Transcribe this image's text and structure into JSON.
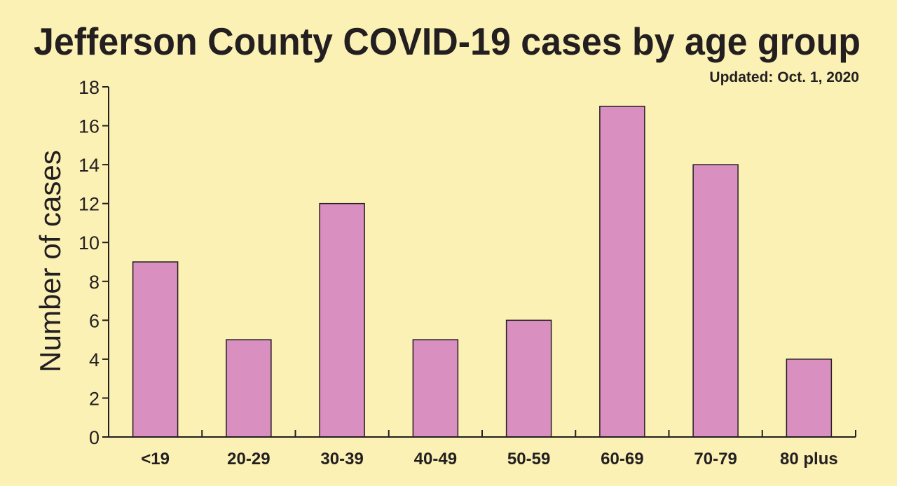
{
  "chart_data": {
    "type": "bar",
    "title": "Jefferson County COVID-19 cases by age group",
    "subtitle": "Updated: Oct. 1, 2020",
    "xlabel": "",
    "ylabel": "Number of cases",
    "categories": [
      "<19",
      "20-29",
      "30-39",
      "40-49",
      "50-59",
      "60-69",
      "70-79",
      "80 plus"
    ],
    "values": [
      9,
      5,
      12,
      5,
      6,
      17,
      14,
      4
    ],
    "ylim": [
      0,
      18
    ],
    "yticks": [
      0,
      2,
      4,
      6,
      8,
      10,
      12,
      14,
      16,
      18
    ],
    "grid": false,
    "bar_color": "#d98fbf",
    "background_color": "#fbf1b5"
  }
}
